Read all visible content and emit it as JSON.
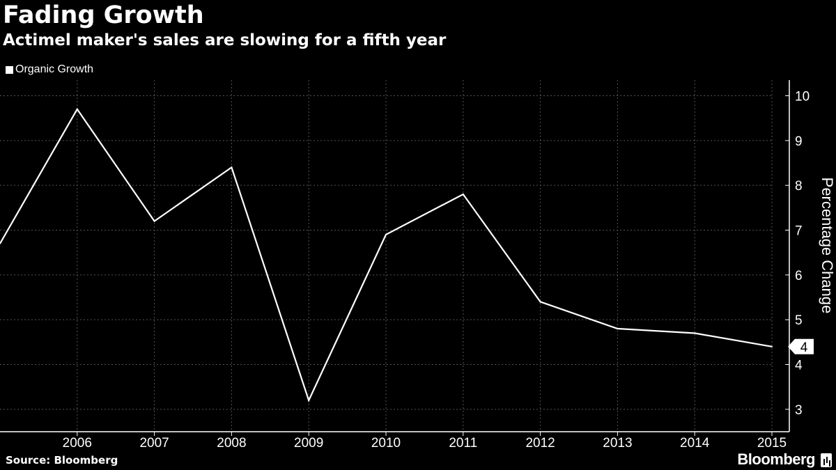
{
  "header": {
    "title": "Fading Growth",
    "subtitle": "Actimel maker's sales are slowing for a fifth year"
  },
  "legend": {
    "label": "Organic Growth"
  },
  "footer": {
    "source": "Source: Bloomberg",
    "brand": "Bloomberg"
  },
  "colors": {
    "background": "#000000",
    "line": "#ffffff",
    "grid": "#555555"
  },
  "chart_data": {
    "type": "line",
    "title": "Fading Growth",
    "subtitle": "Actimel maker's sales are slowing for a fifth year",
    "ylabel": "Percentage Change",
    "xlabel": "",
    "x": [
      2005,
      2006,
      2007,
      2008,
      2009,
      2010,
      2011,
      2012,
      2013,
      2014,
      2015
    ],
    "x_tick_labels": [
      "2006",
      "2007",
      "2008",
      "2009",
      "2010",
      "2011",
      "2012",
      "2013",
      "2014",
      "2015"
    ],
    "series": [
      {
        "name": "Organic Growth",
        "values": [
          6.7,
          9.7,
          7.2,
          8.4,
          3.2,
          6.9,
          7.8,
          5.4,
          4.8,
          4.7,
          4.4
        ]
      }
    ],
    "y_ticks": [
      3,
      4,
      5,
      6,
      7,
      8,
      9,
      10
    ],
    "ylim": [
      2.5,
      10.35
    ],
    "last_value_label": "4",
    "grid": true,
    "y_axis_position": "right",
    "legend_position": "top-left"
  }
}
